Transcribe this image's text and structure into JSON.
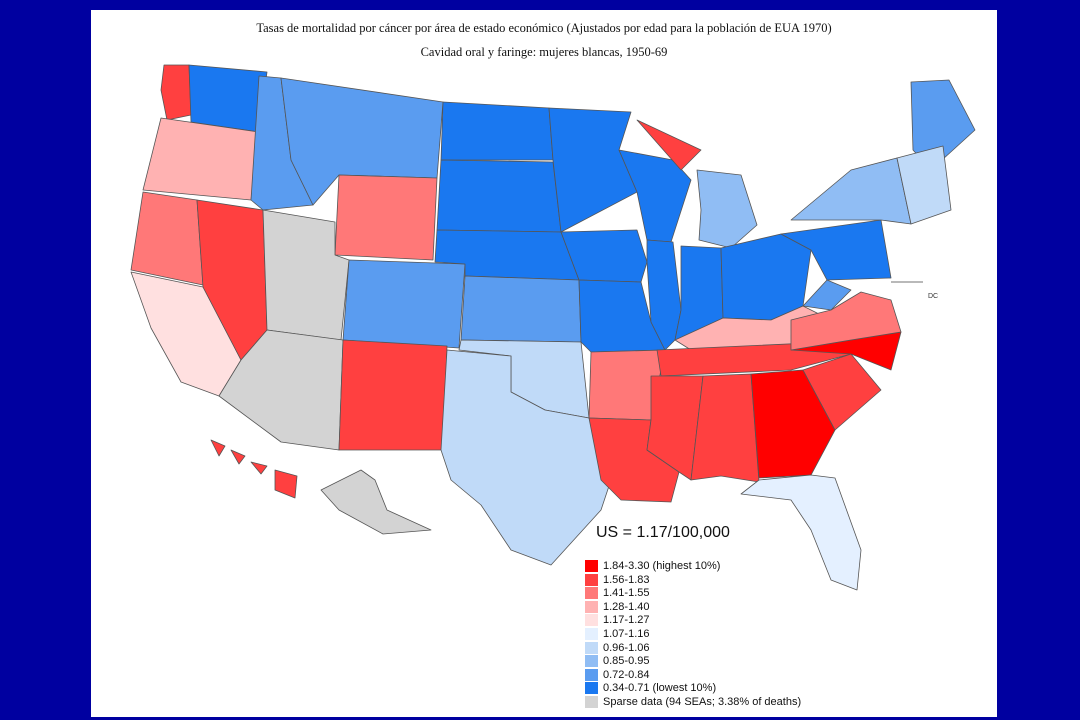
{
  "title": "Tasas de mortalidad por cáncer por área de estado económico (Ajustados por edad para la población de EUA 1970)",
  "subtitle": "Cavidad oral y faringe: mujeres blancas, 1950-69",
  "map_label_dc": "DC",
  "legend": {
    "heading": "US = 1.17/100,000",
    "items": [
      {
        "label": "1.84-3.30 (highest 10%)",
        "color": "#ff0000"
      },
      {
        "label": "1.56-1.83",
        "color": "#ff4040"
      },
      {
        "label": "1.41-1.55",
        "color": "#ff7878"
      },
      {
        "label": "1.28-1.40",
        "color": "#ffb2b2"
      },
      {
        "label": "1.17-1.27",
        "color": "#ffe0e0"
      },
      {
        "label": "1.07-1.16",
        "color": "#e4f0ff"
      },
      {
        "label": "0.96-1.06",
        "color": "#c0daf8"
      },
      {
        "label": "0.85-0.95",
        "color": "#90bdf4"
      },
      {
        "label": "0.72-0.84",
        "color": "#5a9cf0"
      },
      {
        "label": "0.34-0.71 (lowest 10%)",
        "color": "#1a78f0"
      },
      {
        "label": "Sparse data (94 SEAs; 3.38% of deaths)",
        "color": "#d3d3d3"
      }
    ]
  },
  "regions": [
    {
      "name": "Washington coast",
      "cls": 1
    },
    {
      "name": "Washington east",
      "cls": 9
    },
    {
      "name": "Oregon",
      "cls": 3
    },
    {
      "name": "California north",
      "cls": 2
    },
    {
      "name": "California south",
      "cls": 4
    },
    {
      "name": "Nevada",
      "cls": 1
    },
    {
      "name": "Idaho",
      "cls": 8
    },
    {
      "name": "Montana",
      "cls": 8
    },
    {
      "name": "Wyoming",
      "cls": 2
    },
    {
      "name": "Utah",
      "cls": 10
    },
    {
      "name": "Colorado",
      "cls": 8
    },
    {
      "name": "Arizona",
      "cls": 10
    },
    {
      "name": "New Mexico",
      "cls": 1
    },
    {
      "name": "North Dakota",
      "cls": 9
    },
    {
      "name": "South Dakota",
      "cls": 9
    },
    {
      "name": "Nebraska",
      "cls": 9
    },
    {
      "name": "Kansas",
      "cls": 8
    },
    {
      "name": "Oklahoma",
      "cls": 6
    },
    {
      "name": "Texas",
      "cls": 6
    },
    {
      "name": "Minnesota",
      "cls": 9
    },
    {
      "name": "Iowa",
      "cls": 9
    },
    {
      "name": "Missouri",
      "cls": 9
    },
    {
      "name": "Arkansas",
      "cls": 2
    },
    {
      "name": "Louisiana",
      "cls": 1
    },
    {
      "name": "Wisconsin",
      "cls": 9
    },
    {
      "name": "Michigan upper",
      "cls": 1
    },
    {
      "name": "Michigan lower",
      "cls": 7
    },
    {
      "name": "Illinois",
      "cls": 9
    },
    {
      "name": "Indiana",
      "cls": 9
    },
    {
      "name": "Ohio",
      "cls": 9
    },
    {
      "name": "Kentucky",
      "cls": 3
    },
    {
      "name": "Tennessee",
      "cls": 1
    },
    {
      "name": "Mississippi",
      "cls": 1
    },
    {
      "name": "Alabama",
      "cls": 1
    },
    {
      "name": "Georgia",
      "cls": 0
    },
    {
      "name": "Florida",
      "cls": 5
    },
    {
      "name": "South Carolina",
      "cls": 1
    },
    {
      "name": "North Carolina",
      "cls": 0
    },
    {
      "name": "Virginia",
      "cls": 2
    },
    {
      "name": "West Virginia",
      "cls": 8
    },
    {
      "name": "Pennsylvania",
      "cls": 9
    },
    {
      "name": "New York",
      "cls": 7
    },
    {
      "name": "Maine",
      "cls": 8
    },
    {
      "name": "New England",
      "cls": 6
    },
    {
      "name": "Alaska",
      "cls": 10
    },
    {
      "name": "Hawaii",
      "cls": 1
    }
  ]
}
